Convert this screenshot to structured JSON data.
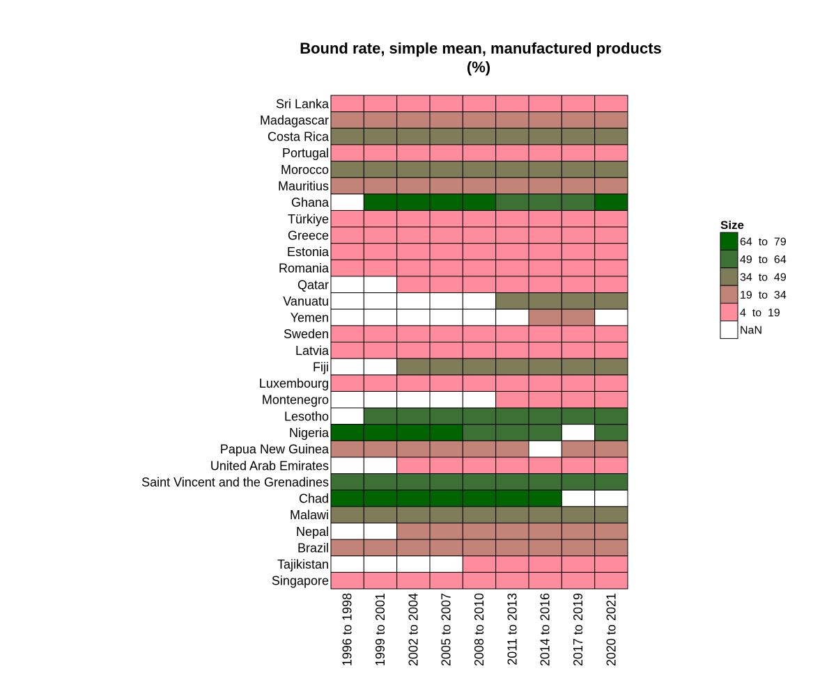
{
  "chart_data": {
    "type": "heatmap",
    "title": "Bound rate, simple mean, manufactured products",
    "subtitle": "(%)",
    "rows": [
      "Sri Lanka",
      "Madagascar",
      "Costa Rica",
      "Portugal",
      "Morocco",
      "Mauritius",
      "Ghana",
      "Türkiye",
      "Greece",
      "Estonia",
      "Romania",
      "Qatar",
      "Vanuatu",
      "Yemen",
      "Sweden",
      "Latvia",
      "Fiji",
      "Luxembourg",
      "Montenegro",
      "Lesotho",
      "Nigeria",
      "Papua New Guinea",
      "United Arab Emirates",
      "Saint Vincent and the Grenadines",
      "Chad",
      "Malawi",
      "Nepal",
      "Brazil",
      "Tajikistan",
      "Singapore"
    ],
    "columns": [
      "1996 to 1998",
      "1999 to 2001",
      "2002 to 2004",
      "2005 to 2007",
      "2008 to 2010",
      "2011 to 2013",
      "2014 to 2016",
      "2017 to 2019",
      "2020 to 2021"
    ],
    "legend": {
      "title": "Size",
      "position": "right",
      "bins": [
        {
          "label": "64  to  79",
          "color": "#006400"
        },
        {
          "label": "49  to  64",
          "color": "#3d7035"
        },
        {
          "label": "34  to  49",
          "color": "#7f7c5a"
        },
        {
          "label": "19  to  34",
          "color": "#c28379"
        },
        {
          "label": "4  to  19",
          "color": "#ff8c9d"
        },
        {
          "label": "NaN",
          "color": "#ffffff"
        }
      ]
    },
    "bin_index": {
      "64-79": 0,
      "49-64": 1,
      "34-49": 2,
      "19-34": 3,
      "4-19": 4,
      "NaN": 5
    },
    "cells": [
      [
        4,
        4,
        4,
        4,
        4,
        4,
        4,
        4,
        4
      ],
      [
        3,
        3,
        3,
        3,
        3,
        3,
        3,
        3,
        3
      ],
      [
        2,
        2,
        2,
        2,
        2,
        2,
        2,
        2,
        2
      ],
      [
        4,
        4,
        4,
        4,
        4,
        4,
        4,
        4,
        4
      ],
      [
        2,
        2,
        2,
        2,
        2,
        2,
        2,
        2,
        2
      ],
      [
        3,
        3,
        3,
        3,
        3,
        3,
        3,
        3,
        3
      ],
      [
        5,
        0,
        0,
        0,
        0,
        1,
        1,
        1,
        0
      ],
      [
        4,
        4,
        4,
        4,
        4,
        4,
        4,
        4,
        4
      ],
      [
        4,
        4,
        4,
        4,
        4,
        4,
        4,
        4,
        4
      ],
      [
        4,
        4,
        4,
        4,
        4,
        4,
        4,
        4,
        4
      ],
      [
        4,
        4,
        4,
        4,
        4,
        4,
        4,
        4,
        4
      ],
      [
        5,
        5,
        4,
        4,
        4,
        4,
        4,
        4,
        4
      ],
      [
        5,
        5,
        5,
        5,
        5,
        2,
        2,
        2,
        2
      ],
      [
        5,
        5,
        5,
        5,
        5,
        5,
        3,
        3,
        5
      ],
      [
        4,
        4,
        4,
        4,
        4,
        4,
        4,
        4,
        4
      ],
      [
        4,
        4,
        4,
        4,
        4,
        4,
        4,
        4,
        4
      ],
      [
        5,
        5,
        2,
        2,
        2,
        2,
        2,
        2,
        2
      ],
      [
        4,
        4,
        4,
        4,
        4,
        4,
        4,
        4,
        4
      ],
      [
        5,
        5,
        5,
        5,
        5,
        4,
        4,
        4,
        4
      ],
      [
        5,
        1,
        1,
        1,
        1,
        1,
        1,
        1,
        1
      ],
      [
        0,
        0,
        0,
        0,
        1,
        1,
        1,
        5,
        1
      ],
      [
        3,
        3,
        3,
        3,
        3,
        3,
        5,
        3,
        3
      ],
      [
        5,
        5,
        4,
        4,
        4,
        4,
        4,
        4,
        4
      ],
      [
        1,
        1,
        1,
        1,
        1,
        1,
        1,
        1,
        1
      ],
      [
        0,
        0,
        0,
        0,
        0,
        0,
        0,
        5,
        5
      ],
      [
        2,
        2,
        2,
        2,
        2,
        2,
        2,
        2,
        2
      ],
      [
        5,
        5,
        3,
        3,
        3,
        3,
        3,
        3,
        3
      ],
      [
        3,
        3,
        3,
        3,
        3,
        3,
        3,
        3,
        3
      ],
      [
        5,
        5,
        5,
        5,
        4,
        4,
        4,
        4,
        4
      ],
      [
        4,
        4,
        4,
        4,
        4,
        4,
        4,
        4,
        4
      ]
    ]
  }
}
